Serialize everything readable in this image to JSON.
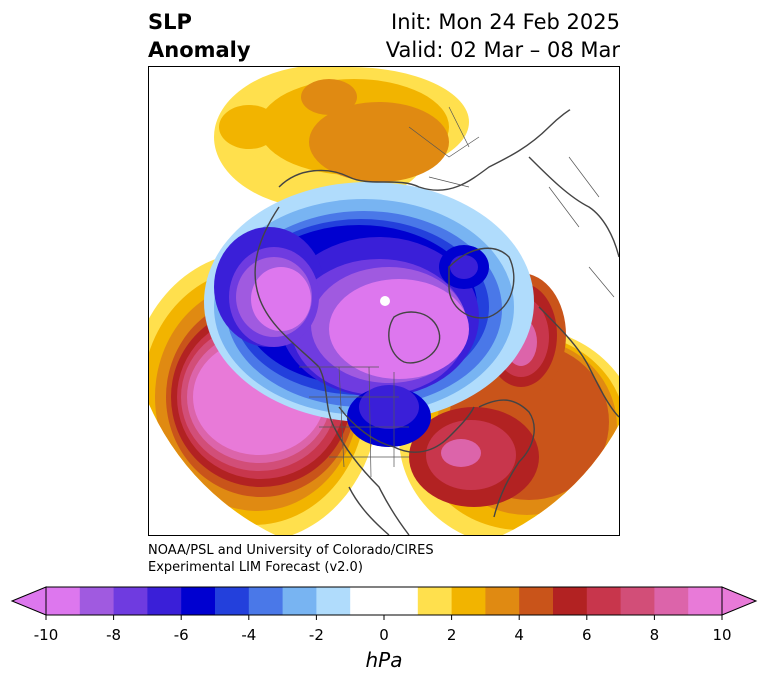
{
  "title": {
    "left_line1": "SLP",
    "left_line2": "Anomaly",
    "right_line1": "Init: Mon 24 Feb 2025",
    "right_line2": "Valid: 02 Mar – 08 Mar"
  },
  "credit": {
    "line1": "NOAA/PSL and University of Colorado/CIRES",
    "line2": "Experimental LIM Forecast (v2.0)"
  },
  "colorbar": {
    "unit": "hPa",
    "ticks": [
      "-10",
      "-8",
      "-6",
      "-4",
      "-2",
      "0",
      "2",
      "4",
      "6",
      "8",
      "10"
    ],
    "bin_colors": [
      "#dd77ee",
      "#a05ae0",
      "#6f3be0",
      "#3a1fd8",
      "#0000d0",
      "#2340dc",
      "#4a78e8",
      "#78b4f2",
      "#b0dcfc",
      "#ffffff",
      "#ffffff",
      "#ffe04d",
      "#f2b400",
      "#e08a12",
      "#c9541a",
      "#b22222",
      "#c8364c",
      "#d24e78",
      "#dc64aa",
      "#e87ad8"
    ]
  },
  "map_colors": {
    "land_outline": "#444444",
    "positive_anomaly": "#b22222",
    "negative_anomaly": "#0000d0"
  }
}
